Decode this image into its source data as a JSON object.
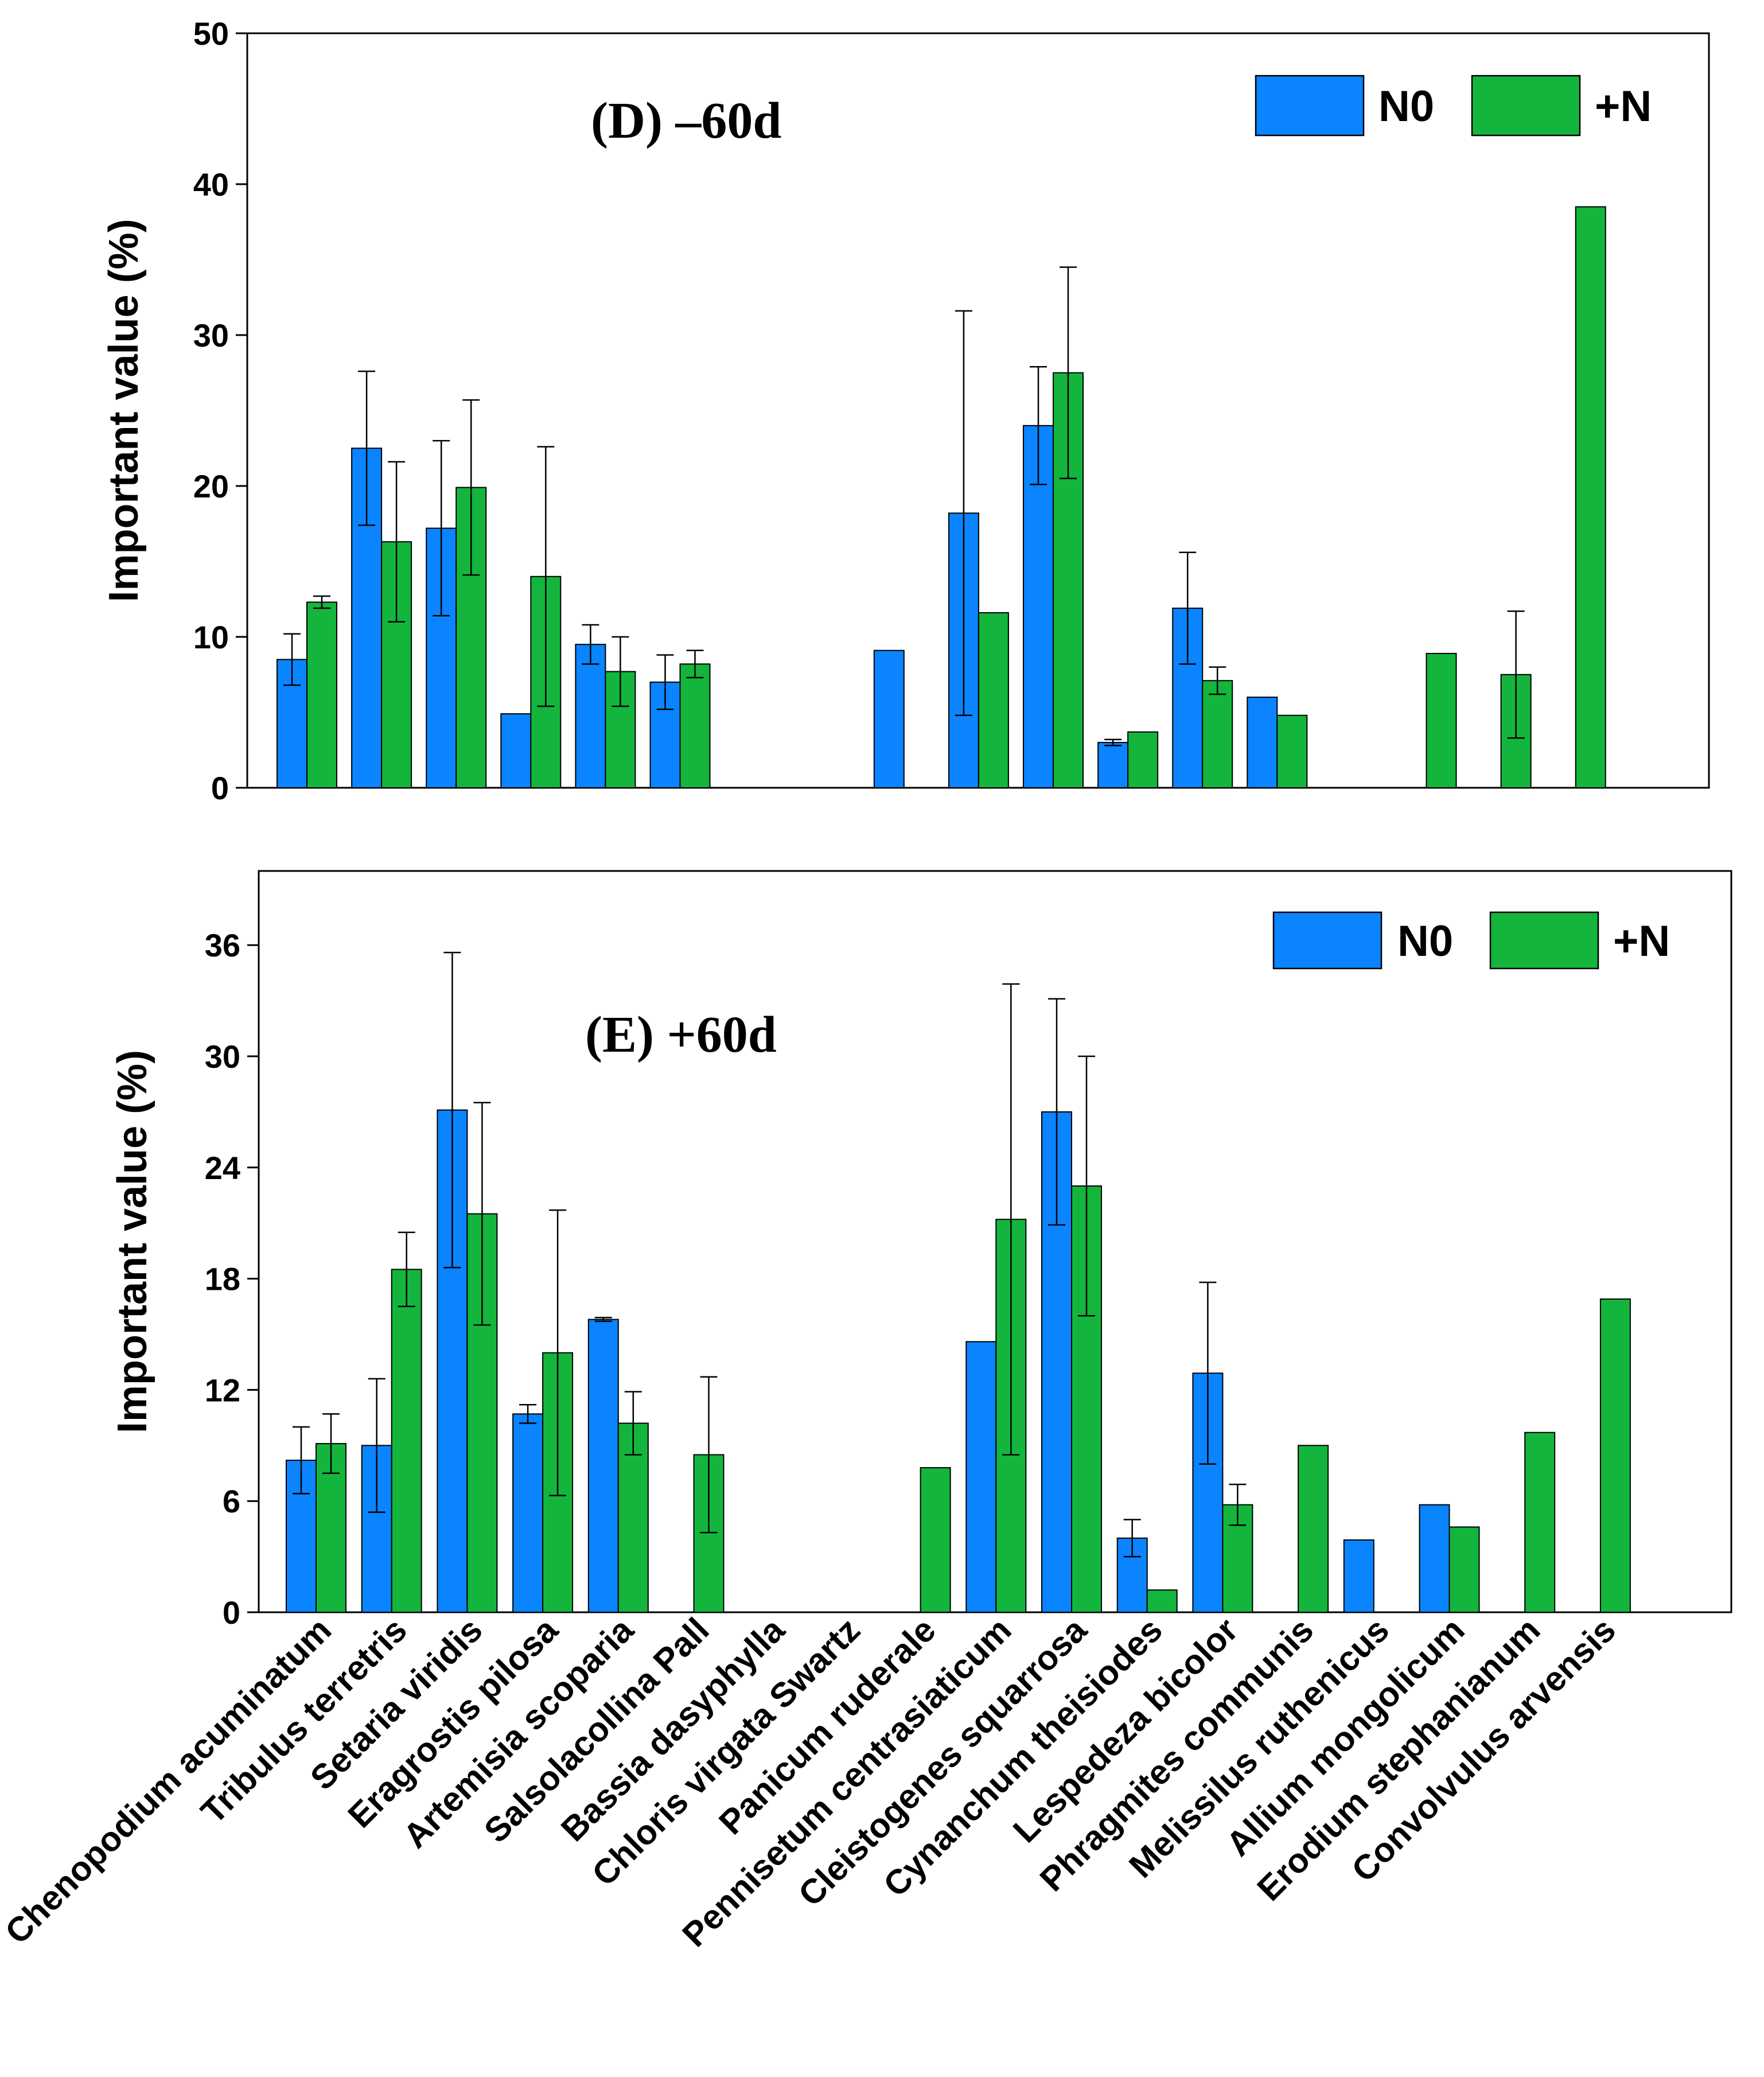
{
  "colors": {
    "n0": "#0a84ff",
    "plus_n": "#14b53c",
    "axis": "#000000"
  },
  "chart_data": [
    {
      "type": "bar",
      "panel": "D",
      "title": "(D) –60d",
      "ylabel": "Important value (%)",
      "ylim": [
        0,
        50
      ],
      "yticks": [
        0,
        10,
        20,
        30,
        40,
        50
      ],
      "legend": [
        "N0",
        "+N"
      ],
      "legend_position": "top-right",
      "categories": [
        "Chenopodium acuminatum",
        "Tribulus terretris",
        "Setaria viridis",
        "Eragrostis pilosa",
        "Artemisia scoparia",
        "Salsolacollina Pall",
        "Bassia dasyphylla",
        "Chloris virgata Swartz",
        "Panicum ruderale",
        "Pennisetum centrasiaticum",
        "Cleistogenes squarrosa",
        "Cynanchum theisiodes",
        "Lespedeza bicolor",
        "Phragmites communis",
        "Melissilus ruthenicus",
        "Allium mongolicum",
        "Erodium stephanianum",
        "Convolvulus arvensis"
      ],
      "series": [
        {
          "name": "N0",
          "values": [
            8.5,
            22.5,
            17.2,
            4.9,
            9.5,
            7.0,
            null,
            null,
            9.1,
            18.2,
            24.0,
            3.0,
            11.9,
            6.0,
            null,
            null,
            null,
            null
          ],
          "errors": [
            1.7,
            5.1,
            5.8,
            0,
            1.3,
            1.8,
            null,
            null,
            0,
            13.4,
            3.9,
            0.2,
            3.7,
            0,
            null,
            null,
            null,
            null
          ]
        },
        {
          "name": "+N",
          "values": [
            12.3,
            16.3,
            19.9,
            14.0,
            7.7,
            8.2,
            null,
            null,
            null,
            11.6,
            27.5,
            3.7,
            7.1,
            4.8,
            null,
            8.9,
            7.5,
            38.5
          ],
          "errors": [
            0.4,
            5.3,
            5.8,
            8.6,
            2.3,
            0.9,
            null,
            null,
            null,
            0,
            7.0,
            0,
            0.9,
            0,
            null,
            0,
            4.2,
            0
          ]
        }
      ]
    },
    {
      "type": "bar",
      "panel": "E",
      "title": "(E) +60d",
      "ylabel": "Important value (%)",
      "ylim": [
        0,
        40
      ],
      "yticks": [
        0,
        6,
        12,
        18,
        24,
        30,
        36
      ],
      "legend": [
        "N0",
        "+N"
      ],
      "legend_position": "top-right",
      "categories": [
        "Chenopodium acuminatum",
        "Tribulus terretris",
        "Setaria viridis",
        "Eragrostis pilosa",
        "Artemisia scoparia",
        "Salsolacollina Pall",
        "Bassia dasyphylla",
        "Chloris virgata Swartz",
        "Panicum ruderale",
        "Pennisetum centrasiaticum",
        "Cleistogenes squarrosa",
        "Cynanchum theisiodes",
        "Lespedeza bicolor",
        "Phragmites communis",
        "Melissilus ruthenicus",
        "Allium mongolicum",
        "Erodium stephanianum",
        "Convolvulus arvensis"
      ],
      "series": [
        {
          "name": "N0",
          "values": [
            8.2,
            9.0,
            27.1,
            10.7,
            15.8,
            null,
            null,
            null,
            null,
            14.6,
            27.0,
            4.0,
            12.9,
            null,
            3.9,
            5.8,
            null,
            null
          ],
          "errors": [
            1.8,
            3.6,
            8.5,
            0.5,
            0.1,
            null,
            null,
            null,
            null,
            0,
            6.1,
            1.0,
            4.9,
            null,
            0,
            0,
            null,
            null
          ]
        },
        {
          "name": "+N",
          "values": [
            9.1,
            18.5,
            21.5,
            14.0,
            10.2,
            8.5,
            null,
            null,
            7.8,
            21.2,
            23.0,
            1.2,
            5.8,
            9.0,
            null,
            4.6,
            9.7,
            16.9
          ],
          "errors": [
            1.6,
            2.0,
            6.0,
            7.7,
            1.7,
            4.2,
            null,
            null,
            0,
            12.7,
            7.0,
            0,
            1.1,
            0,
            null,
            0,
            0,
            0
          ]
        }
      ]
    }
  ]
}
